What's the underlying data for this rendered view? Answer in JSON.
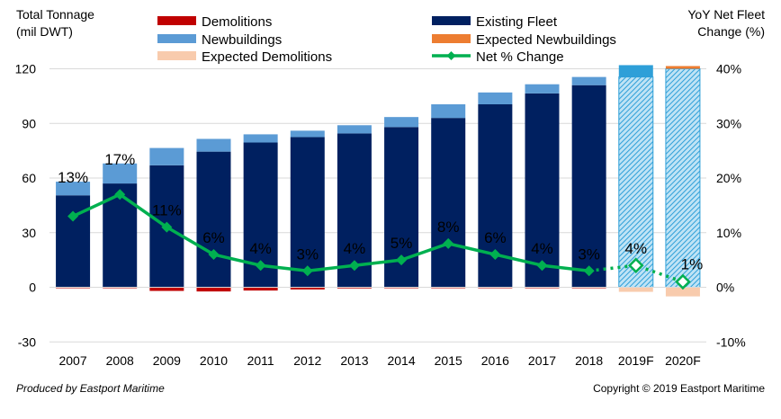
{
  "chart_data": {
    "type": "bar",
    "left_axis_title": [
      "Total Tonnage",
      "(mil DWT)"
    ],
    "right_axis_title": [
      "YoY Net Fleet",
      "Change (%)"
    ],
    "categories": [
      "2007",
      "2008",
      "2009",
      "2010",
      "2011",
      "2012",
      "2013",
      "2014",
      "2015",
      "2016",
      "2017",
      "2018",
      "2019F",
      "2020F"
    ],
    "series": [
      {
        "name": "Demolitions",
        "color": "#c00000",
        "values": [
          -0.5,
          -0.5,
          -2,
          -2.3,
          -1.8,
          -1.2,
          -0.6,
          -0.5,
          -0.5,
          -0.5,
          -0.5,
          -0.5,
          0,
          0
        ]
      },
      {
        "name": "Existing Fleet",
        "color": "#002060",
        "values": [
          50.5,
          57,
          67,
          74.5,
          79.5,
          82.5,
          84.5,
          88,
          93,
          100.5,
          106.5,
          111,
          115.5,
          120
        ]
      },
      {
        "name": "Newbuildings",
        "color": "#5b9bd5",
        "values": [
          7.5,
          11,
          9.5,
          7,
          4.5,
          3.5,
          4.5,
          5.5,
          7.5,
          6.5,
          5,
          4.5,
          0,
          0
        ]
      },
      {
        "name": "Expected Newbuildings",
        "color": "#ed7d31",
        "values": [
          0,
          0,
          0,
          0,
          0,
          0,
          0,
          0,
          0,
          0,
          0,
          0,
          0,
          1.5
        ]
      },
      {
        "name": "Expected Demolitions",
        "color": "#f8cbad",
        "values": [
          0,
          0,
          0,
          0,
          0,
          0,
          0,
          0,
          0,
          0,
          0,
          0,
          -2.5,
          -5
        ]
      },
      {
        "name": "Net % Change",
        "color": "#00b050",
        "values": [
          13,
          17,
          11,
          6,
          4,
          3,
          4,
          5,
          8,
          6,
          4,
          3,
          4,
          1
        ]
      }
    ],
    "forecast_newbuildings": [
      0,
      0,
      0,
      0,
      0,
      0,
      0,
      0,
      0,
      0,
      0,
      0,
      6.5,
      0
    ],
    "forecast_fill_color": "#2e9fd8",
    "pct_labels": [
      "13%",
      "17%",
      "11%",
      "6%",
      "4%",
      "3%",
      "4%",
      "5%",
      "8%",
      "6%",
      "4%",
      "3%",
      "4%",
      "1%"
    ],
    "left_ticks": [
      120,
      90,
      60,
      30,
      0,
      -30
    ],
    "right_ticks": [
      "40%",
      "30%",
      "20%",
      "10%",
      "0%",
      "-10%"
    ],
    "ylim_left": [
      -30,
      120
    ],
    "ylim_right": [
      -10,
      40
    ],
    "legend": [
      {
        "label": "Demolitions",
        "color": "#c00000",
        "kind": "box"
      },
      {
        "label": "Existing Fleet",
        "color": "#002060",
        "kind": "box"
      },
      {
        "label": "Newbuildings",
        "color": "#5b9bd5",
        "kind": "box"
      },
      {
        "label": "Expected Newbuildings",
        "color": "#ed7d31",
        "kind": "box"
      },
      {
        "label": "Expected Demolitions",
        "color": "#f8cbad",
        "kind": "box"
      },
      {
        "label": "Net % Change",
        "color": "#00b050",
        "kind": "line"
      }
    ]
  },
  "footer": {
    "left": "Produced by Eastport Maritime",
    "right": "Copyright © 2019 Eastport Maritime"
  }
}
